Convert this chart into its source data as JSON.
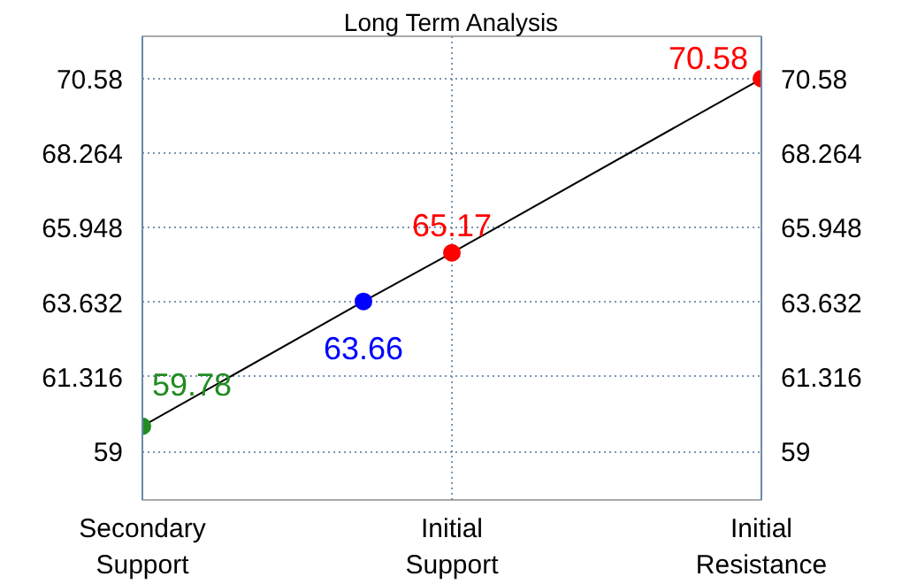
{
  "chart_data": {
    "type": "line",
    "title": "Long Term Analysis",
    "categories": [
      "Secondary Support",
      null,
      null,
      null,
      null,
      null,
      null,
      "Initial Support",
      null,
      null,
      null,
      null,
      null,
      null,
      "Initial Resistance"
    ],
    "series": [
      {
        "color": "#000000",
        "colors": [
          "#228b22",
          null,
          null,
          null,
          null,
          "#0000ff",
          null,
          "#ff0000",
          null,
          null,
          null,
          null,
          null,
          null,
          "#ff0000"
        ],
        "values": [
          59.78,
          null,
          null,
          null,
          null,
          63.66,
          null,
          65.17,
          null,
          null,
          null,
          null,
          null,
          null,
          70.58
        ]
      }
    ],
    "data_labels": true,
    "marker": "circle",
    "grid": true,
    "ylim": [
      57.49,
      71.9
    ],
    "yticks": [
      59,
      61.316,
      63.632,
      65.948,
      68.264,
      70.58
    ],
    "y2lim": [
      57.49,
      71.9
    ],
    "y2ticks": [
      59,
      61.316,
      63.632,
      65.948,
      68.264,
      70.58
    ]
  }
}
